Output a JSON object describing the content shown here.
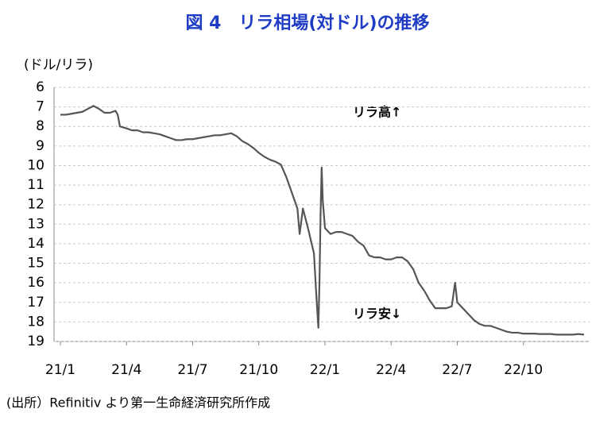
{
  "chart_data": {
    "type": "line",
    "title": "図 4　リラ相場(対ドル)の推移",
    "y_label": "(ドル/リラ)",
    "source": "(出所）Refinitiv より第一生命経済研究所作成",
    "annotations": [
      "リラ高↑",
      "リラ安↓"
    ],
    "y_inverted": true,
    "grid": true,
    "xlim": [
      0,
      24
    ],
    "xticks": [
      {
        "value": 0,
        "label": "21/1"
      },
      {
        "value": 3,
        "label": "21/4"
      },
      {
        "value": 6,
        "label": "21/7"
      },
      {
        "value": 9,
        "label": "21/10"
      },
      {
        "value": 12,
        "label": "22/1"
      },
      {
        "value": 15,
        "label": "22/4"
      },
      {
        "value": 18,
        "label": "22/7"
      },
      {
        "value": 21,
        "label": "22/10"
      }
    ],
    "ylim": [
      6,
      19
    ],
    "yticks": [
      6,
      7,
      8,
      9,
      10,
      11,
      12,
      13,
      14,
      15,
      16,
      17,
      18,
      19
    ],
    "series": [
      {
        "color": "#555555",
        "x": [
          0,
          0.25,
          0.5,
          0.75,
          1,
          1.25,
          1.5,
          1.75,
          2,
          2.25,
          2.5,
          2.6,
          2.7,
          3,
          3.25,
          3.5,
          3.75,
          4,
          4.25,
          4.5,
          4.75,
          5,
          5.25,
          5.5,
          5.75,
          6,
          6.25,
          6.5,
          6.75,
          7,
          7.25,
          7.5,
          7.75,
          8,
          8.25,
          8.5,
          8.75,
          9,
          9.25,
          9.5,
          9.75,
          10,
          10.25,
          10.5,
          10.75,
          10.85,
          11,
          11.25,
          11.5,
          11.6,
          11.7,
          11.75,
          11.8,
          11.85,
          11.9,
          12,
          12.25,
          12.5,
          12.75,
          13,
          13.25,
          13.5,
          13.75,
          14,
          14.25,
          14.5,
          14.75,
          15,
          15.25,
          15.5,
          15.75,
          16,
          16.25,
          16.5,
          16.75,
          17,
          17.25,
          17.5,
          17.75,
          17.9,
          18,
          18.25,
          18.5,
          18.75,
          19,
          19.25,
          19.5,
          19.75,
          20,
          20.25,
          20.5,
          20.75,
          21,
          21.25,
          21.5,
          21.75,
          22,
          22.25,
          22.5,
          22.75,
          23,
          23.25,
          23.5,
          23.75
        ],
        "values": [
          7.4,
          7.4,
          7.35,
          7.3,
          7.25,
          7.1,
          6.95,
          7.1,
          7.3,
          7.3,
          7.2,
          7.4,
          8.0,
          8.1,
          8.2,
          8.2,
          8.3,
          8.3,
          8.35,
          8.4,
          8.5,
          8.6,
          8.7,
          8.7,
          8.65,
          8.65,
          8.6,
          8.55,
          8.5,
          8.45,
          8.45,
          8.4,
          8.35,
          8.5,
          8.75,
          8.9,
          9.1,
          9.35,
          9.55,
          9.7,
          9.8,
          9.95,
          10.6,
          11.4,
          12.2,
          13.5,
          12.2,
          13.3,
          14.5,
          16.5,
          18.3,
          16.0,
          12.5,
          10.1,
          11.8,
          13.2,
          13.5,
          13.4,
          13.4,
          13.5,
          13.6,
          13.9,
          14.1,
          14.6,
          14.7,
          14.7,
          14.8,
          14.8,
          14.7,
          14.7,
          14.9,
          15.3,
          16.0,
          16.4,
          16.9,
          17.3,
          17.3,
          17.3,
          17.2,
          16.0,
          17.0,
          17.3,
          17.6,
          17.9,
          18.1,
          18.2,
          18.2,
          18.3,
          18.4,
          18.5,
          18.55,
          18.55,
          18.6,
          18.6,
          18.6,
          18.62,
          18.62,
          18.62,
          18.65,
          18.65,
          18.65,
          18.65,
          18.62,
          18.65
        ]
      }
    ]
  }
}
